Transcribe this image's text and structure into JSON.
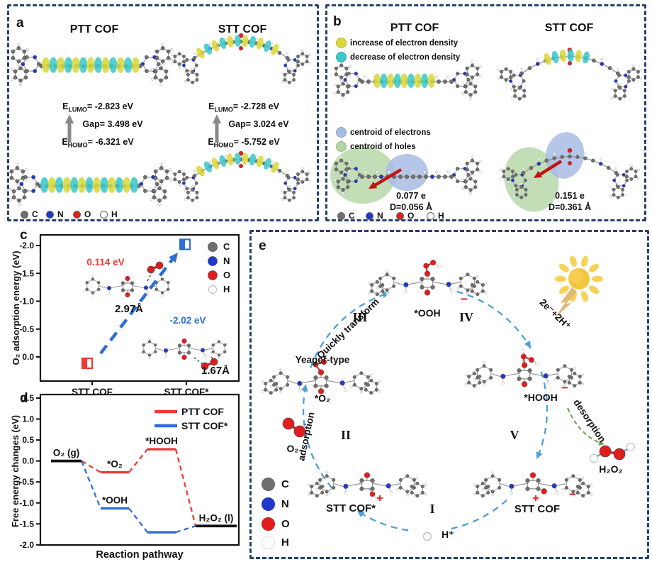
{
  "atoms": [
    {
      "symbol": "C",
      "color": "#6f6f6f"
    },
    {
      "symbol": "N",
      "color": "#2238cc"
    },
    {
      "symbol": "O",
      "color": "#e21d1d"
    },
    {
      "symbol": "H",
      "color": "#ffffff"
    }
  ],
  "colors": {
    "border": "#24406e",
    "red": "#ee3b36",
    "blue": "#2f6fd2",
    "cycle_blue": "#4d9fd6",
    "gray_arrow": "#8a8a8a",
    "yellow_blob": "#d9d93e",
    "cyan_blob": "#3ec9c9",
    "centroid_electrons": "#a9bce4",
    "centroid_holes": "#b3d6a4",
    "sun_body": "#f2c63d",
    "sun_ray": "#f6d258",
    "lightning": "#e2b873",
    "green_arrow": "#6d9b50",
    "transfer_arrow": "#c01414"
  },
  "panel_a": {
    "label": "a",
    "ptt_title": "PTT COF",
    "stt_title": "STT COF",
    "ptt": {
      "lumo_pre": "E",
      "lumo_sub": "LUMO",
      "lumo_val": "= -2.823 eV",
      "gap": "Gap= 3.498 eV",
      "homo_pre": "E",
      "homo_sub": "HOMO",
      "homo_val": "= -6.321 eV"
    },
    "stt": {
      "lumo_pre": "E",
      "lumo_sub": "LUMO",
      "lumo_val": "= -2.728 eV",
      "gap": "Gap= 3.024 eV",
      "homo_pre": "E",
      "homo_sub": "HOMO",
      "homo_val": "= -5.752 eV"
    }
  },
  "panel_b": {
    "label": "b",
    "ptt_title": "PTT COF",
    "stt_title": "STT COF",
    "legend": [
      {
        "label": "increase of electron density",
        "color": "#d9d93e"
      },
      {
        "label": "decrease of electron density",
        "color": "#3ec9c9"
      },
      {
        "label": "centroid of electrons",
        "color": "#a9bce4"
      },
      {
        "label": "centroid of holes",
        "color": "#b3d6a4"
      }
    ],
    "ptt_charge": "0.077 e",
    "ptt_distance": "D=0.056 Å",
    "stt_charge": "0.151 e",
    "stt_distance": "D=0.361 Å"
  },
  "panel_c": {
    "label": "c"
  },
  "panel_d": {
    "label": "d"
  },
  "panel_e": {
    "label": "e",
    "quickly_transform": "Quickly transform",
    "electron_transfer": "2e⁻+2H⁺",
    "desorption": "desorption",
    "adsorption": "adsorption",
    "yeager_type": "Yeager-type",
    "species": {
      "ooh": "*OOH",
      "o2_ads": "*O₂",
      "hooh": "*HOOH",
      "o2": "O₂",
      "h2o2": "H₂O₂",
      "h_plus": "H⁺"
    },
    "states": {
      "i": "I",
      "ii": "II",
      "iii": "III",
      "iv": "IV",
      "v": "V"
    },
    "cof_star": "STT COF*",
    "cof": "STT COF",
    "plus": "+",
    "minus": "−"
  },
  "chart_data": [
    {
      "id": "o2-adsorption",
      "type": "scatter",
      "ylabel": "O₂ adsorption energy (eV)",
      "y_axis_inverted": true,
      "yticks": [
        -2.0,
        -1.5,
        -1.0,
        -0.5,
        0.0
      ],
      "categories": [
        "STT COF",
        "STT COF*"
      ],
      "points": [
        {
          "category": "STT COF",
          "value": 0.114,
          "label": "0.114 eV",
          "color": "#ee3b36"
        },
        {
          "category": "STT COF*",
          "value": -2.02,
          "label": "-2.02 eV",
          "color": "#2f6fd2"
        }
      ],
      "distance_annotations": [
        {
          "text": "2.97Å"
        },
        {
          "text": "1.67Å"
        }
      ],
      "legend_atoms": [
        "C",
        "N",
        "O",
        "H"
      ]
    },
    {
      "id": "free-energy",
      "type": "step-line",
      "ylabel": "Free energy changes (eV)",
      "xlabel": "Reaction pathway",
      "ylim": [
        -2.0,
        1.5
      ],
      "yticks": [
        1.5,
        1.0,
        0.5,
        0.0,
        -0.5,
        -1.0,
        -1.5,
        -2.0
      ],
      "legend": [
        {
          "name": "PTT COF",
          "color": "#ee3b36"
        },
        {
          "name": "STT COF*",
          "color": "#2f6fd2"
        }
      ],
      "levels": [
        {
          "label": "O₂ (g)",
          "value": 0.0,
          "step": 0,
          "series": "shared",
          "color": "#111111"
        },
        {
          "label": "*O₂",
          "value": -0.27,
          "step": 1,
          "series": "PTT COF",
          "color": "#ee3b36"
        },
        {
          "label": "*OOH",
          "value": -1.13,
          "step": 1,
          "series": "STT COF*",
          "color": "#2f6fd2"
        },
        {
          "label": "*HOOH",
          "value": 0.28,
          "step": 2,
          "series": "PTT COF",
          "color": "#ee3b36"
        },
        {
          "label": "",
          "value": -1.7,
          "step": 2,
          "series": "STT COF*",
          "color": "#2f6fd2"
        },
        {
          "label": "H₂O₂ (l)",
          "value": -1.55,
          "step": 3,
          "series": "shared",
          "color": "#111111"
        }
      ]
    }
  ]
}
